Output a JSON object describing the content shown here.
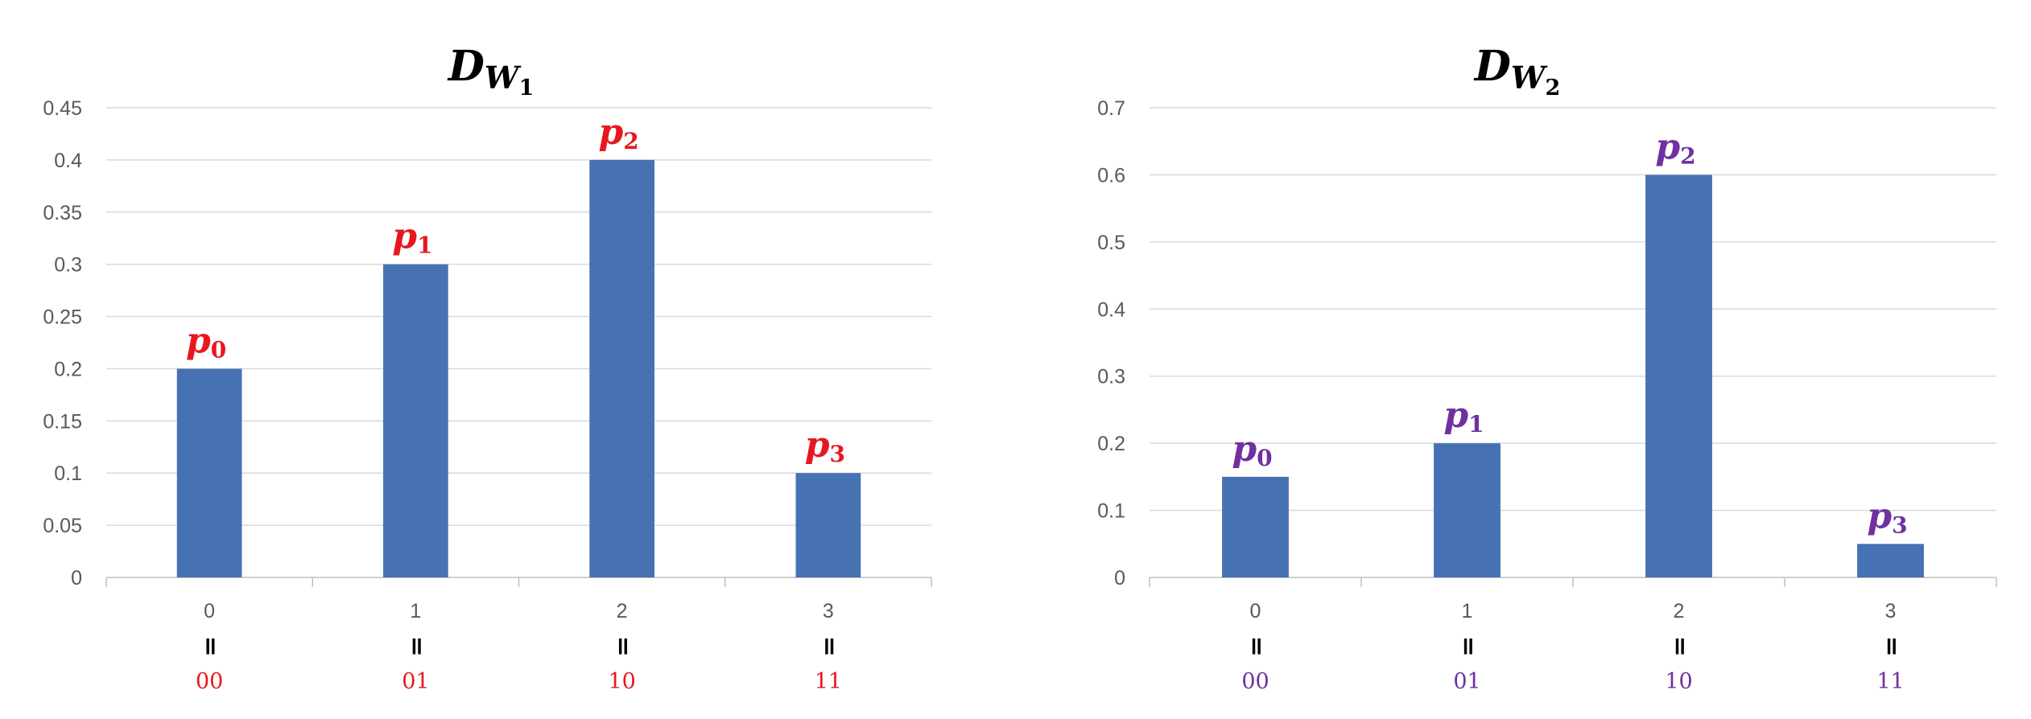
{
  "chart_data": [
    {
      "type": "bar",
      "title": {
        "main": "D",
        "sub": "W",
        "subsub": "1"
      },
      "categories": [
        "0",
        "1",
        "2",
        "3"
      ],
      "binary_labels": [
        "00",
        "01",
        "10",
        "11"
      ],
      "equals_symbol": "॥",
      "bar_labels": [
        {
          "main": "p",
          "sub": "0"
        },
        {
          "main": "p",
          "sub": "1"
        },
        {
          "main": "p",
          "sub": "2"
        },
        {
          "main": "p",
          "sub": "3"
        }
      ],
      "values": [
        0.2,
        0.3,
        0.4,
        0.1
      ],
      "yticks": [
        "0",
        "0.05",
        "0.1",
        "0.15",
        "0.2",
        "0.25",
        "0.3",
        "0.35",
        "0.4",
        "0.45"
      ],
      "ylim": [
        0,
        0.45
      ],
      "grid": true,
      "bar_color": "#4672B4",
      "label_color": "#E8171F"
    },
    {
      "type": "bar",
      "title": {
        "main": "D",
        "sub": "W",
        "subsub": "2"
      },
      "categories": [
        "0",
        "1",
        "2",
        "3"
      ],
      "binary_labels": [
        "00",
        "01",
        "10",
        "11"
      ],
      "equals_symbol": "॥",
      "bar_labels": [
        {
          "main": "p",
          "sub": "0"
        },
        {
          "main": "p",
          "sub": "1"
        },
        {
          "main": "p",
          "sub": "2"
        },
        {
          "main": "p",
          "sub": "3"
        }
      ],
      "values": [
        0.15,
        0.2,
        0.6,
        0.05
      ],
      "yticks": [
        "0",
        "0.1",
        "0.2",
        "0.3",
        "0.4",
        "0.5",
        "0.6",
        "0.7"
      ],
      "ylim": [
        0,
        0.7
      ],
      "grid": true,
      "bar_color": "#4672B4",
      "label_color": "#7030A0"
    }
  ]
}
